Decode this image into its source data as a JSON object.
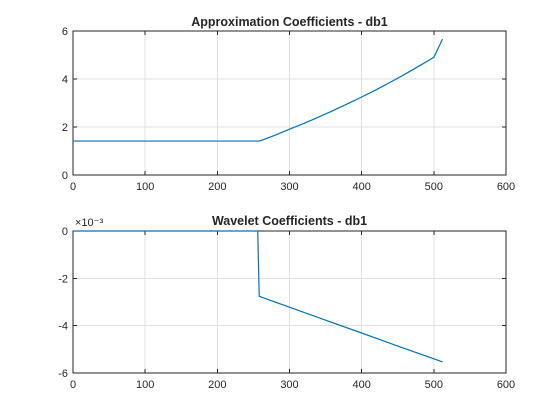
{
  "chart_data": [
    {
      "type": "line",
      "title": "Approximation Coefficients - db1",
      "xlabel": "",
      "ylabel": "",
      "xlim": [
        0,
        600
      ],
      "ylim": [
        0,
        6
      ],
      "xticks": [
        0,
        100,
        200,
        300,
        400,
        500,
        600
      ],
      "yticks": [
        0,
        2,
        4,
        6
      ],
      "grid": true,
      "exponent": "",
      "color": "#0072BD",
      "series": [
        {
          "x": [
            1,
            100,
            200,
            257,
            260,
            280,
            300,
            320,
            340,
            360,
            380,
            400,
            420,
            440,
            460,
            480,
            500,
            512
          ],
          "y": [
            1.414,
            1.414,
            1.414,
            1.414,
            1.43,
            1.66,
            1.91,
            2.15,
            2.41,
            2.68,
            2.96,
            3.25,
            3.55,
            3.87,
            4.2,
            4.55,
            4.9,
            5.66
          ]
        }
      ]
    },
    {
      "type": "line",
      "title": "Wavelet Coefficients - db1",
      "xlabel": "",
      "ylabel": "",
      "xlim": [
        0,
        600
      ],
      "ylim": [
        -6,
        0
      ],
      "xticks": [
        0,
        100,
        200,
        300,
        400,
        500,
        600
      ],
      "yticks": [
        -6,
        -4,
        -2,
        0
      ],
      "grid": true,
      "exponent": "×10⁻³",
      "color": "#0072BD",
      "series": [
        {
          "x": [
            1,
            100,
            200,
            256,
            258,
            300,
            350,
            400,
            450,
            500,
            512
          ],
          "y": [
            0,
            0,
            0,
            0,
            -2.76,
            -3.22,
            -3.77,
            -4.31,
            -4.86,
            -5.4,
            -5.53
          ]
        }
      ]
    }
  ]
}
